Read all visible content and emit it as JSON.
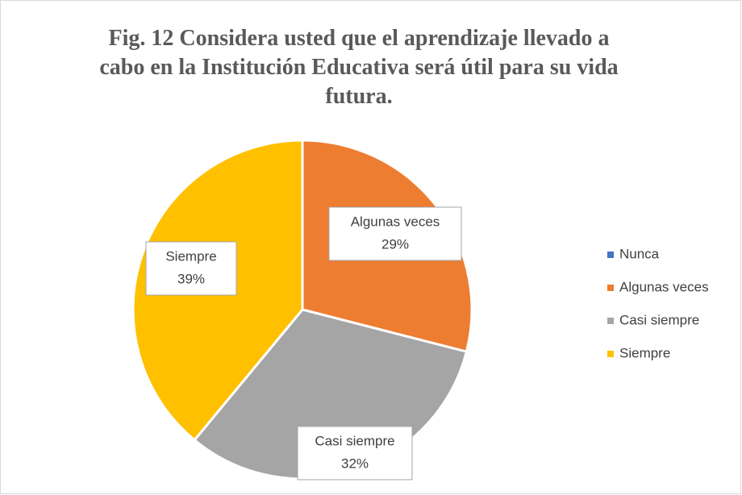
{
  "chart_data": {
    "type": "pie",
    "title": "Fig. 12 Considera usted que el aprendizaje llevado a cabo en la Institución Educativa será útil para su vida futura.",
    "categories": [
      "Nunca",
      "Algunas veces",
      "Casi siempre",
      "Siempre"
    ],
    "values": [
      0,
      29,
      32,
      39
    ],
    "value_labels": [
      null,
      "29%",
      "32%",
      "39%"
    ],
    "colors": [
      "#4472c4",
      "#ed7d31",
      "#a5a5a5",
      "#ffc000"
    ],
    "legend": "right"
  }
}
